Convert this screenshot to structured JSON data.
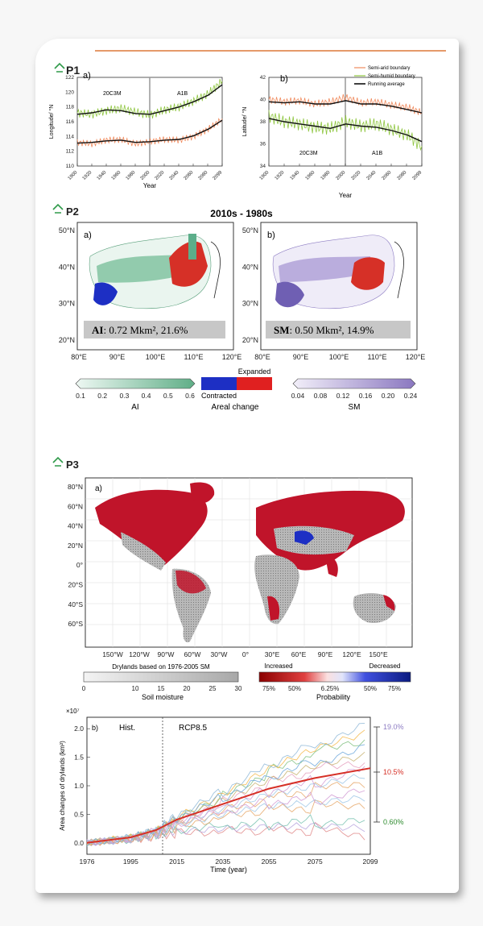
{
  "colors": {
    "orange": "#f08a5d",
    "green": "#8fc640",
    "black": "#111111",
    "red": "#d63027",
    "blue": "#1d2fc4",
    "teal": "#5cae8a",
    "purple": "#8d7cc3",
    "sm_purple": "#7c6ab8",
    "dark_red": "#a50f15",
    "navy": "#0b1f8a",
    "gray": "#bdbdbd"
  },
  "p1": {
    "label": "P1",
    "panel_a": {
      "tag": "a)",
      "ylabel": "Longitude/ °N",
      "xlabel": "Year",
      "ticks_y": [
        "110",
        "112",
        "114",
        "116",
        "118",
        "120",
        "122"
      ],
      "ticks_x": [
        "1900",
        "1920",
        "1940",
        "1960",
        "1980",
        "2000",
        "2020",
        "2040",
        "2060",
        "2080",
        "2099"
      ],
      "era1": "20C3M",
      "era2": "A1B"
    },
    "panel_b": {
      "tag": "b)",
      "ylabel": "Latitude/ °N",
      "xlabel": "Year",
      "ticks_y": [
        "34",
        "36",
        "38",
        "40",
        "42"
      ],
      "ticks_x": [
        "1900",
        "1920",
        "1940",
        "1960",
        "1980",
        "2000",
        "2020",
        "2040",
        "2060",
        "2080",
        "2099"
      ],
      "era1": "20C3M",
      "era2": "A1B"
    },
    "legend": [
      "Semi-arid boundary",
      "Semi-humid boundary",
      "Running average"
    ]
  },
  "p2": {
    "label": "P2",
    "title": "2010s - 1980s",
    "map_a": {
      "tag": "a)",
      "lat": [
        "50°N",
        "40°N",
        "30°N",
        "20°N"
      ],
      "lon": [
        "80°E",
        "90°E",
        "100°E",
        "110°E",
        "120°E"
      ],
      "stat_var": "AI",
      "stat_val": ": 0.72 Mkm², 21.6%"
    },
    "map_b": {
      "tag": "b)",
      "lat": [
        "50°N",
        "40°N",
        "30°N",
        "20°N"
      ],
      "lon": [
        "80°E",
        "90°E",
        "100°E",
        "110°E",
        "120°E"
      ],
      "stat_var": "SM",
      "stat_val": ": 0.50 Mkm², 14.9%"
    },
    "cbar_ai": {
      "ticks": [
        "0.1",
        "0.2",
        "0.3",
        "0.4",
        "0.5",
        "0.6"
      ],
      "label": "AI"
    },
    "cbar_area": {
      "expanded": "Expanded",
      "contracted": "Contracted",
      "label": "Areal change"
    },
    "cbar_sm": {
      "ticks": [
        "0.04",
        "0.08",
        "0.12",
        "0.16",
        "0.20",
        "0.24"
      ],
      "label": "SM"
    }
  },
  "p3": {
    "label": "P3",
    "map": {
      "tag": "a)",
      "lat": [
        "80°N",
        "60°N",
        "40°N",
        "20°N",
        "0°",
        "20°S",
        "40°S",
        "60°S"
      ],
      "lon": [
        "150°W",
        "120°W",
        "90°W",
        "60°W",
        "30°W",
        "0°",
        "30°E",
        "60°E",
        "90°E",
        "120°E",
        "150°E"
      ]
    },
    "cbar_dry": {
      "title": "Drylands based on 1976-2005 SM",
      "ticks": [
        "0",
        "10",
        "15",
        "20",
        "25",
        "30"
      ],
      "label": "Soil moisture"
    },
    "cbar_prob": {
      "increased": "Increased",
      "decreased": "Decreased",
      "ticks": [
        "75%",
        "50%",
        "6.25%",
        "50%",
        "75%"
      ],
      "label": "Probability"
    },
    "ts": {
      "tag": "b)",
      "hist": "Hist.",
      "rcp": "RCP8.5",
      "exponent": "×10⁷",
      "ylabel": "Area changes of drylands (km²)",
      "xlabel": "Time (year)",
      "ticks_y": [
        "0.0",
        "0.5",
        "1.0",
        "1.5",
        "2.0"
      ],
      "ticks_x": [
        "1976",
        "1995",
        "2015",
        "2035",
        "2055",
        "2075",
        "2099"
      ],
      "pct_high": "19.0%",
      "pct_mid": "10.5%",
      "pct_low": "0.60%"
    }
  },
  "chart_data": [
    {
      "type": "line",
      "panel": "P1 a)",
      "xlabel": "Year",
      "ylabel": "Longitude/ °N",
      "xlim": [
        1900,
        2099
      ],
      "ylim": [
        110,
        122
      ],
      "x": [
        1900,
        1920,
        1940,
        1960,
        1980,
        2000,
        2020,
        2040,
        2060,
        2080,
        2099
      ],
      "series": [
        {
          "name": "Semi-humid boundary",
          "values": [
            117.2,
            117.0,
            117.5,
            117.8,
            117.3,
            116.9,
            117.6,
            118.0,
            118.8,
            119.8,
            121.5
          ]
        },
        {
          "name": "Running average",
          "values": [
            117.0,
            117.2,
            117.6,
            117.5,
            117.1,
            117.0,
            117.5,
            118.0,
            118.7,
            119.6,
            121.0
          ]
        },
        {
          "name": "Semi-arid boundary",
          "values": [
            113.2,
            113.0,
            113.5,
            113.6,
            113.0,
            113.3,
            113.6,
            113.5,
            114.0,
            115.0,
            116.4
          ]
        },
        {
          "name": "Running average",
          "values": [
            113.1,
            113.2,
            113.4,
            113.5,
            113.2,
            113.3,
            113.5,
            113.6,
            114.1,
            115.0,
            116.2
          ]
        }
      ]
    },
    {
      "type": "line",
      "panel": "P1 b)",
      "xlabel": "Year",
      "ylabel": "Latitude/ °N",
      "xlim": [
        1900,
        2099
      ],
      "ylim": [
        34,
        42
      ],
      "x": [
        1900,
        1920,
        1940,
        1960,
        1980,
        2000,
        2020,
        2040,
        2060,
        2080,
        2099
      ],
      "series": [
        {
          "name": "Semi-arid boundary",
          "values": [
            40.0,
            39.8,
            39.9,
            39.6,
            39.8,
            40.2,
            39.7,
            39.8,
            39.5,
            39.3,
            38.8
          ]
        },
        {
          "name": "Running average",
          "values": [
            39.8,
            39.7,
            39.8,
            39.6,
            39.6,
            39.9,
            39.6,
            39.6,
            39.4,
            39.1,
            38.8
          ]
        },
        {
          "name": "Semi-humid boundary",
          "values": [
            38.5,
            38.0,
            37.8,
            37.5,
            37.4,
            38.0,
            37.6,
            37.8,
            37.3,
            36.8,
            35.8
          ]
        },
        {
          "name": "Running average",
          "values": [
            38.3,
            38.0,
            37.8,
            37.6,
            37.4,
            37.8,
            37.6,
            37.5,
            37.2,
            36.8,
            36.2
          ]
        }
      ]
    },
    {
      "type": "line",
      "panel": "P3 b)",
      "xlabel": "Time (year)",
      "ylabel": "Area changes of drylands (km²)",
      "xlim": [
        1976,
        2099
      ],
      "ylim": [
        -0.2,
        2.2
      ],
      "x": [
        1976,
        1995,
        2006,
        2015,
        2035,
        2055,
        2075,
        2099
      ],
      "series": [
        {
          "values": [
            0.0,
            0.08,
            0.2,
            0.35,
            0.6,
            0.85,
            1.0,
            1.2
          ]
        },
        {
          "values": [
            0.0,
            0.1,
            0.22,
            0.45,
            0.85,
            1.3,
            1.65,
            1.95
          ]
        },
        {
          "values": [
            0.0,
            0.05,
            0.12,
            0.2,
            0.25,
            0.28,
            0.3,
            0.25
          ]
        },
        {
          "values": [
            0.0,
            0.08,
            0.2,
            0.4,
            0.75,
            1.1,
            1.35,
            1.55
          ]
        },
        {
          "values": [
            0.0,
            0.06,
            0.15,
            0.3,
            0.5,
            0.65,
            0.7,
            0.8
          ]
        }
      ],
      "annotations": [
        "19.0%",
        "10.5%",
        "0.60%"
      ]
    }
  ]
}
